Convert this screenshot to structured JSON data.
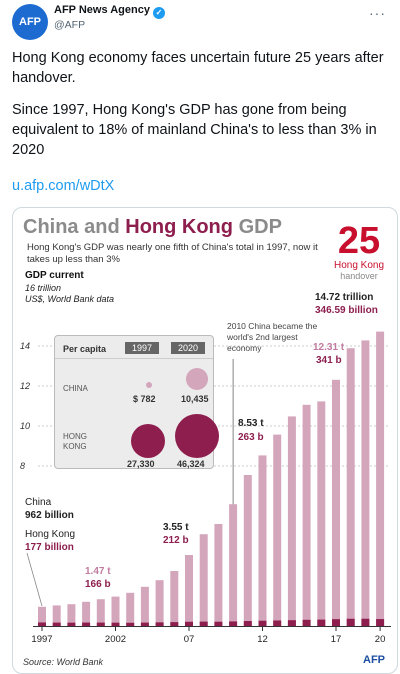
{
  "tweet": {
    "author_name": "AFP News Agency",
    "author_handle": "@AFP",
    "avatar_text": "AFP",
    "headline": "Hong Kong economy faces uncertain future 25 years after handover.",
    "body": "Since 1997, Hong Kong's GDP has gone from being equivalent to 18% of mainland China's to less than 3% in 2020",
    "link": "u.afp.com/wDtX"
  },
  "infographic": {
    "title_china": "China",
    "title_and": "and",
    "title_hk": "Hong Kong",
    "title_gdp": "GDP",
    "subtitle": "Hong Kong's GDP was nearly one fifth of China's total  in 1997, now it takes up less than 3%",
    "anniversary_number": "25",
    "anniversary_line1": "Hong Kong",
    "anniversary_line2": "handover",
    "gdp_label": "GDP current",
    "unit_line1": "16 trillion",
    "unit_line2": "US$, World Bank data",
    "note_2010": "2010 China became the world's 2nd largest economy",
    "source": "Source: World Bank",
    "logo": "AFP",
    "colors": {
      "china": "#d4a6bb",
      "hong_kong": "#8d1e4d",
      "title_gray": "#8b8b8b",
      "accent_red": "#c8102e"
    },
    "annotations": {
      "china_1997_label": "China",
      "china_1997_value": "962 billion",
      "hk_1997_label": "Hong Kong",
      "hk_1997_value": "177 billion",
      "y2002_china": "1.47 t",
      "y2002_hk": "166 b",
      "y2007_china": "3.55 t",
      "y2007_hk": "212 b",
      "y2012_china": "8.53 t",
      "y2012_hk": "263 b",
      "y2017_china": "12.31 t",
      "y2017_hk": "341 b",
      "y2020_china": "14.72 trillion",
      "y2020_hk": "346.59 billion"
    },
    "per_capita": {
      "title": "Per capita",
      "years": [
        "1997",
        "2020"
      ],
      "china_label": "CHINA",
      "hk_label": "HONG KONG",
      "china_values": [
        "$ 782",
        "10,435"
      ],
      "hk_values": [
        "27,330",
        "46,324"
      ]
    }
  },
  "chart_data": {
    "type": "bar",
    "title": "China and Hong Kong GDP",
    "ylabel": "GDP current",
    "ylim": [
      0,
      16
    ],
    "yticks": [
      8,
      10,
      12,
      14
    ],
    "xticks": [
      "1997",
      "2002",
      "07",
      "12",
      "17",
      "20"
    ],
    "categories": [
      "1997",
      "1998",
      "1999",
      "2000",
      "2001",
      "2002",
      "2003",
      "2004",
      "2005",
      "2006",
      "2007",
      "2008",
      "2009",
      "2010",
      "2011",
      "2012",
      "2013",
      "2014",
      "2015",
      "2016",
      "2017",
      "2018",
      "2019",
      "2020"
    ],
    "series": [
      {
        "name": "China",
        "values": [
          0.96,
          1.03,
          1.09,
          1.21,
          1.34,
          1.47,
          1.66,
          1.96,
          2.29,
          2.75,
          3.55,
          4.59,
          5.1,
          6.09,
          7.55,
          8.53,
          9.57,
          10.48,
          11.06,
          11.23,
          12.31,
          13.89,
          14.28,
          14.72
        ]
      },
      {
        "name": "Hong Kong",
        "values": [
          0.177,
          0.169,
          0.166,
          0.172,
          0.17,
          0.166,
          0.161,
          0.17,
          0.182,
          0.194,
          0.212,
          0.22,
          0.214,
          0.229,
          0.249,
          0.263,
          0.276,
          0.291,
          0.309,
          0.32,
          0.341,
          0.362,
          0.363,
          0.347
        ]
      }
    ]
  }
}
